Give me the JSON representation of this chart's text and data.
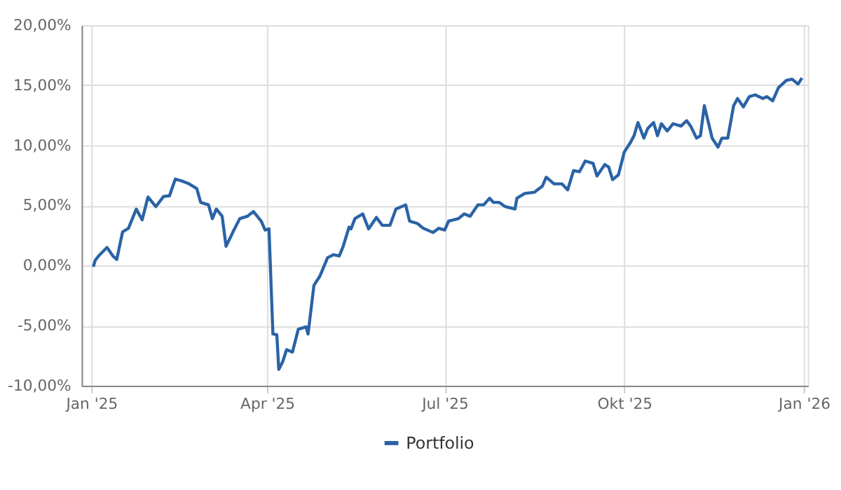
{
  "chart_data": {
    "type": "line",
    "xlim": [
      "2024-12-27",
      "2026-01-03"
    ],
    "xticks": [
      {
        "value": "2025-01-01",
        "label": "Jan '25"
      },
      {
        "value": "2025-04-01",
        "label": "Apr '25"
      },
      {
        "value": "2025-07-01",
        "label": "Jul '25"
      },
      {
        "value": "2025-10-01",
        "label": "Okt '25"
      },
      {
        "value": "2026-01-01",
        "label": "Jan '26"
      }
    ],
    "ylim": [
      -10,
      20
    ],
    "yticks": [
      {
        "value": -10,
        "label": "-10,00%"
      },
      {
        "value": -5,
        "label": "-5,00%"
      },
      {
        "value": 0,
        "label": "0,00%"
      },
      {
        "value": 5,
        "label": "5,00%"
      },
      {
        "value": 10,
        "label": "10,00%"
      },
      {
        "value": 15,
        "label": "15,00%"
      },
      {
        "value": 20,
        "label": "20,00%"
      }
    ],
    "grid": true,
    "legend": "bottom",
    "line_style": "solid",
    "marker": "none",
    "x": [
      "2025-01-02",
      "2025-01-03",
      "2025-01-05",
      "2025-01-09",
      "2025-01-12",
      "2025-01-14",
      "2025-01-17",
      "2025-01-20",
      "2025-01-24",
      "2025-01-27",
      "2025-01-30",
      "2025-02-03",
      "2025-02-07",
      "2025-02-10",
      "2025-02-13",
      "2025-02-17",
      "2025-02-20",
      "2025-02-24",
      "2025-02-26",
      "2025-03-02",
      "2025-03-04",
      "2025-03-06",
      "2025-03-09",
      "2025-03-11",
      "2025-03-15",
      "2025-03-18",
      "2025-03-22",
      "2025-03-25",
      "2025-03-29",
      "2025-03-31",
      "2025-04-02",
      "2025-04-04",
      "2025-04-06",
      "2025-04-07",
      "2025-04-09",
      "2025-04-11",
      "2025-04-14",
      "2025-04-17",
      "2025-04-21",
      "2025-04-22",
      "2025-04-25",
      "2025-04-28",
      "2025-05-02",
      "2025-05-05",
      "2025-05-08",
      "2025-05-10",
      "2025-05-13",
      "2025-05-14",
      "2025-05-16",
      "2025-05-20",
      "2025-05-23",
      "2025-05-27",
      "2025-05-30",
      "2025-06-03",
      "2025-06-06",
      "2025-06-11",
      "2025-06-13",
      "2025-06-17",
      "2025-06-20",
      "2025-06-25",
      "2025-06-28",
      "2025-07-01",
      "2025-07-03",
      "2025-07-08",
      "2025-07-11",
      "2025-07-14",
      "2025-07-18",
      "2025-07-21",
      "2025-07-24",
      "2025-07-26",
      "2025-07-29",
      "2025-08-01",
      "2025-08-06",
      "2025-08-07",
      "2025-08-11",
      "2025-08-16",
      "2025-08-20",
      "2025-08-22",
      "2025-08-26",
      "2025-08-30",
      "2025-09-02",
      "2025-09-05",
      "2025-09-08",
      "2025-09-11",
      "2025-09-15",
      "2025-09-17",
      "2025-09-21",
      "2025-09-23",
      "2025-09-25",
      "2025-09-28",
      "2025-10-01",
      "2025-10-04",
      "2025-10-06",
      "2025-10-08",
      "2025-10-11",
      "2025-10-13",
      "2025-10-16",
      "2025-10-18",
      "2025-10-20",
      "2025-10-23",
      "2025-10-26",
      "2025-10-30",
      "2025-11-02",
      "2025-11-04",
      "2025-11-07",
      "2025-11-09",
      "2025-11-11",
      "2025-11-13",
      "2025-11-15",
      "2025-11-18",
      "2025-11-20",
      "2025-11-23",
      "2025-11-26",
      "2025-11-28",
      "2025-12-01",
      "2025-12-04",
      "2025-12-07",
      "2025-12-11",
      "2025-12-13",
      "2025-12-16",
      "2025-12-19",
      "2025-12-23",
      "2025-12-26",
      "2025-12-29",
      "2025-12-31"
    ],
    "series": [
      {
        "name": "Portfolio",
        "color": "#2a63a6",
        "values": [
          -0.1,
          0.45,
          0.85,
          1.5,
          0.8,
          0.5,
          2.8,
          3.1,
          4.7,
          3.8,
          5.7,
          4.9,
          5.75,
          5.8,
          7.2,
          7.0,
          6.8,
          6.4,
          5.25,
          5.05,
          3.9,
          4.7,
          4.1,
          1.6,
          2.95,
          3.9,
          4.1,
          4.5,
          3.7,
          2.95,
          3.05,
          -5.7,
          -5.75,
          -8.65,
          -8.0,
          -7.0,
          -7.2,
          -5.3,
          -5.1,
          -5.7,
          -1.65,
          -0.9,
          0.65,
          0.9,
          0.8,
          1.6,
          3.2,
          3.05,
          3.9,
          4.3,
          3.05,
          4.0,
          3.35,
          3.35,
          4.7,
          5.05,
          3.7,
          3.5,
          3.1,
          2.75,
          3.1,
          2.95,
          3.7,
          3.9,
          4.3,
          4.1,
          5.05,
          5.05,
          5.6,
          5.25,
          5.25,
          4.9,
          4.7,
          5.6,
          6.0,
          6.1,
          6.6,
          7.35,
          6.8,
          6.8,
          6.3,
          7.9,
          7.8,
          8.7,
          8.5,
          7.45,
          8.4,
          8.2,
          7.15,
          7.55,
          9.45,
          10.2,
          10.8,
          11.9,
          10.6,
          11.4,
          11.9,
          10.8,
          11.8,
          11.2,
          11.8,
          11.6,
          12.05,
          11.6,
          10.6,
          10.8,
          13.3,
          11.95,
          10.6,
          9.85,
          10.6,
          10.6,
          13.3,
          13.9,
          13.2,
          14.05,
          14.2,
          13.9,
          14.05,
          13.7,
          14.8,
          15.4,
          15.5,
          15.1,
          15.6
        ]
      }
    ]
  }
}
